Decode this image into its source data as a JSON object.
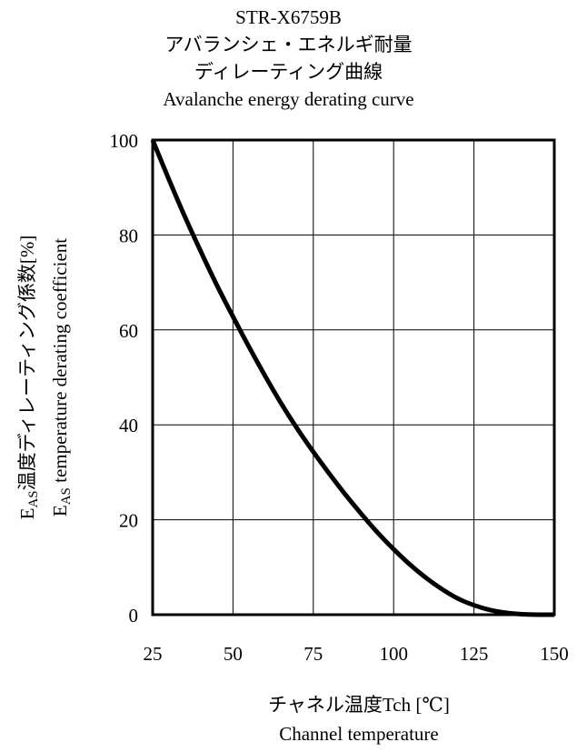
{
  "titles": {
    "line1": "STR-X6759B",
    "line2": "アバランシェ・エネルギ耐量",
    "line3": "ディレーティング曲線",
    "line4": "Avalanche energy derating curve"
  },
  "xaxis": {
    "label_jp": "チャネル温度Tch [℃]",
    "label_en": "Channel temperature"
  },
  "yaxis": {
    "label_jp": {
      "e": "E",
      "sub": "AS",
      "rest": "温度ディレーティング係数[%]"
    },
    "label_en": {
      "e": "E",
      "sub": "AS",
      "rest": " temperature derating coefficient"
    }
  },
  "chart_data": {
    "type": "line",
    "title": "STR-X6759B アバランシェ・エネルギ耐量 ディレーティング曲線 Avalanche energy derating curve",
    "xlabel": "チャネル温度Tch [℃] Channel temperature",
    "ylabel": "EAS温度ディレーティング係数[%] EAS temperature derating coefficient",
    "xlim": [
      25,
      150
    ],
    "ylim": [
      0,
      100
    ],
    "xticks": [
      25,
      50,
      75,
      100,
      125,
      150
    ],
    "yticks": [
      0,
      20,
      40,
      60,
      80,
      100
    ],
    "grid": true,
    "legend": "none",
    "line_color": "#000000",
    "series": [
      {
        "x": [
          25,
          30,
          35,
          40,
          45,
          50,
          55,
          60,
          65,
          70,
          75,
          80,
          85,
          90,
          95,
          100,
          105,
          110,
          115,
          120,
          125,
          130,
          135,
          140,
          145,
          150
        ],
        "values": [
          100,
          91.8,
          83.9,
          76.5,
          69.4,
          62.8,
          56.4,
          50.3,
          44.5,
          39.2,
          34.3,
          29.7,
          25.3,
          21.2,
          17.3,
          13.8,
          10.6,
          7.8,
          5.4,
          3.4,
          2.0,
          1.0,
          0.4,
          0.1,
          0,
          0
        ]
      }
    ]
  }
}
